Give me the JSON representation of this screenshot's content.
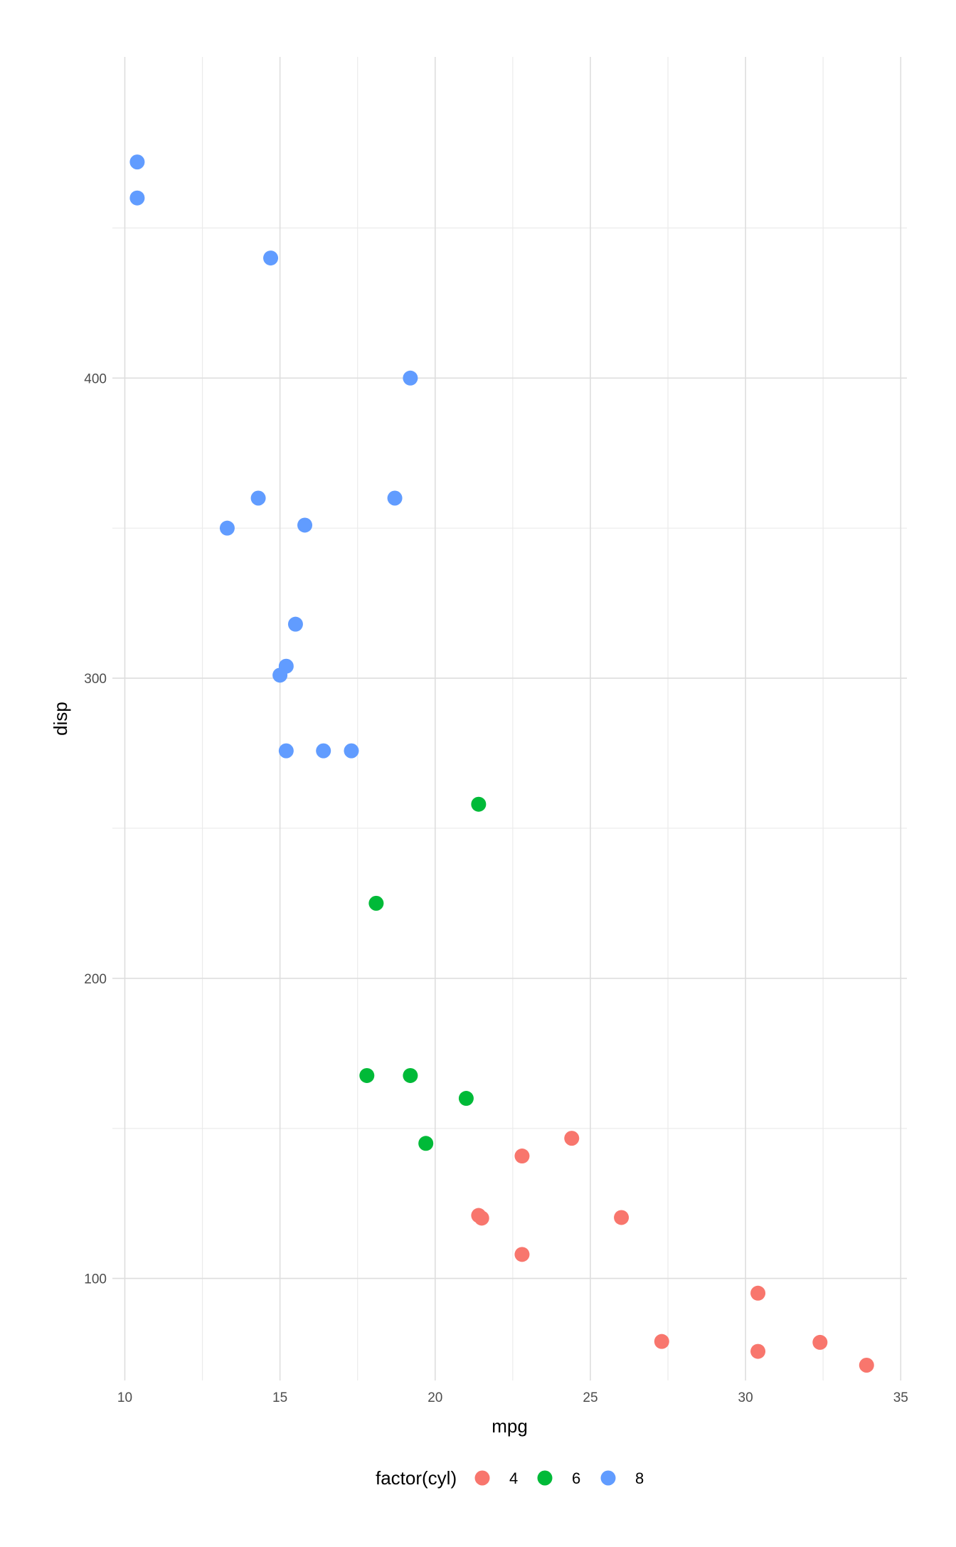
{
  "chart_data": {
    "type": "scatter",
    "xlabel": "mpg",
    "ylabel": "disp",
    "xlim": [
      9.6,
      35.2
    ],
    "ylim": [
      66,
      507
    ],
    "x_ticks": [
      10,
      15,
      20,
      25,
      30,
      35
    ],
    "y_ticks": [
      100,
      200,
      300,
      400
    ],
    "grid": true,
    "legend": {
      "title": "factor(cyl)",
      "position": "bottom",
      "entries": [
        "4",
        "6",
        "8"
      ]
    },
    "colors": {
      "4": "#F8766D",
      "6": "#00BA38",
      "8": "#619CFF"
    },
    "series": [
      {
        "name": "4",
        "points": [
          {
            "x": 22.8,
            "y": 108
          },
          {
            "x": 24.4,
            "y": 146.7
          },
          {
            "x": 22.8,
            "y": 140.8
          },
          {
            "x": 32.4,
            "y": 78.7
          },
          {
            "x": 30.4,
            "y": 75.7
          },
          {
            "x": 33.9,
            "y": 71.1
          },
          {
            "x": 21.5,
            "y": 120.1
          },
          {
            "x": 27.3,
            "y": 79
          },
          {
            "x": 26.0,
            "y": 120.3
          },
          {
            "x": 30.4,
            "y": 95.1
          },
          {
            "x": 21.4,
            "y": 121
          }
        ]
      },
      {
        "name": "6",
        "points": [
          {
            "x": 21.0,
            "y": 160
          },
          {
            "x": 21.4,
            "y": 258
          },
          {
            "x": 18.1,
            "y": 225
          },
          {
            "x": 19.2,
            "y": 167.6
          },
          {
            "x": 17.8,
            "y": 167.6
          },
          {
            "x": 19.7,
            "y": 145
          }
        ]
      },
      {
        "name": "8",
        "points": [
          {
            "x": 18.7,
            "y": 360
          },
          {
            "x": 14.3,
            "y": 360
          },
          {
            "x": 16.4,
            "y": 275.8
          },
          {
            "x": 17.3,
            "y": 275.8
          },
          {
            "x": 15.2,
            "y": 275.8
          },
          {
            "x": 10.4,
            "y": 472
          },
          {
            "x": 10.4,
            "y": 460
          },
          {
            "x": 14.7,
            "y": 440
          },
          {
            "x": 15.5,
            "y": 318
          },
          {
            "x": 15.2,
            "y": 304
          },
          {
            "x": 13.3,
            "y": 350
          },
          {
            "x": 19.2,
            "y": 400
          },
          {
            "x": 15.8,
            "y": 351
          },
          {
            "x": 15.0,
            "y": 301
          }
        ]
      }
    ]
  }
}
